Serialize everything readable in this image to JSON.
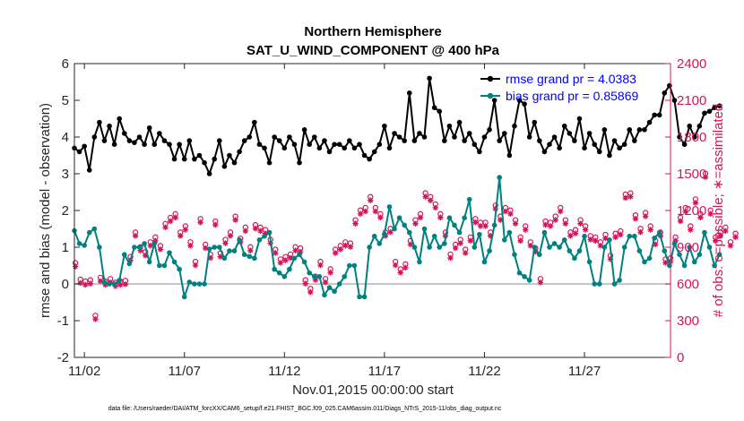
{
  "chart_data": {
    "type": "line",
    "title_line1": "Northern Hemisphere",
    "title_line2": "SAT_U_WIND_COMPONENT @ 400 hPa",
    "xlabel": "Nov.01,2015 00:00:00 start",
    "ylabel_left": "rmse and bias (model - observation)",
    "ylabel_right": "# of obs: o=possible; ∗=assimilated",
    "footer": "data file: /Users/raeder/DAI/ATM_forcXX/CAM6_setup/f.e21.FHIST_BGC.f09_025.CAM6assim.011/Diags_NTrS_2015-11/obs_diag_output.nc",
    "x_ticks": [
      {
        "day": 2,
        "label": "11/02"
      },
      {
        "day": 7,
        "label": "11/07"
      },
      {
        "day": 12,
        "label": "11/12"
      },
      {
        "day": 17,
        "label": "11/17"
      },
      {
        "day": 22,
        "label": "11/22"
      },
      {
        "day": 27,
        "label": "11/27"
      }
    ],
    "xlim": [
      1.5,
      31.3
    ],
    "ylim_left": [
      -2,
      6
    ],
    "yticks_left": [
      "-2",
      "-1",
      "0",
      "1",
      "2",
      "3",
      "4",
      "5",
      "6"
    ],
    "ylim_right": [
      0,
      2400
    ],
    "yticks_right": [
      "0",
      "300",
      "600",
      "900",
      "1200",
      "1500",
      "1800",
      "2100",
      "2400"
    ],
    "colors": {
      "rmse": "#000000",
      "bias": "#008080",
      "obs": "#d4145a",
      "zero": "#b3b3b3",
      "legend_text": "#0000ff"
    },
    "series": [
      {
        "name": "rmse grand pr = 4.0383",
        "x0": 1.5,
        "dx": 0.25,
        "values": [
          3.7,
          3.6,
          3.75,
          3.1,
          4.0,
          4.4,
          3.9,
          4.3,
          3.8,
          4.5,
          4.1,
          3.9,
          3.85,
          4.0,
          3.8,
          4.25,
          3.8,
          4.1,
          3.9,
          3.8,
          3.4,
          3.8,
          3.4,
          3.9,
          3.4,
          3.5,
          3.3,
          3.0,
          3.4,
          3.9,
          3.2,
          3.5,
          3.3,
          3.6,
          3.9,
          4.0,
          4.4,
          3.8,
          3.7,
          3.3,
          4.0,
          3.9,
          3.7,
          4.0,
          3.8,
          3.3,
          4.2,
          3.8,
          4.0,
          3.7,
          3.9,
          3.6,
          3.8,
          3.8,
          3.7,
          3.9,
          3.7,
          3.8,
          3.5,
          3.4,
          3.6,
          3.8,
          4.3,
          3.7,
          4.1,
          4.0,
          3.9,
          5.2,
          3.9,
          4.1,
          4.0,
          5.6,
          4.8,
          4.7,
          3.9,
          4.3,
          4.0,
          4.4,
          3.9,
          4.1,
          3.8,
          3.6,
          4.0,
          4.2,
          5.0,
          3.9,
          4.1,
          3.5,
          4.3,
          5.0,
          4.9,
          4.0,
          4.4,
          3.9,
          3.6,
          3.8,
          4.0,
          3.7,
          4.3,
          4.1,
          3.9,
          4.5,
          3.7,
          4.1,
          3.8,
          3.6,
          4.2,
          3.5,
          3.9,
          3.7,
          3.8,
          4.2,
          3.9,
          4.2,
          4.2,
          4.4,
          4.6,
          4.6,
          5.2,
          5.4,
          5.0,
          4.0,
          3.8,
          4.3,
          4.0,
          4.3,
          4.65,
          4.7,
          4.8,
          4.85
        ]
      },
      {
        "name": "bias grand pr = 0.85869",
        "x0": 1.5,
        "dx": 0.25,
        "values": [
          1.45,
          1.1,
          1.05,
          1.4,
          1.5,
          1.0,
          0.05,
          0.0,
          0.0,
          0.1,
          0.8,
          0.55,
          1.0,
          1.0,
          1.1,
          0.6,
          1.1,
          0.5,
          0.5,
          0.85,
          0.6,
          0.4,
          -0.35,
          0.05,
          0.0,
          0.0,
          0.0,
          0.95,
          1.0,
          1.0,
          0.7,
          0.9,
          0.9,
          1.2,
          0.8,
          0.75,
          0.7,
          1.2,
          1.3,
          1.4,
          0.4,
          0.3,
          0.2,
          0.4,
          0.7,
          0.8,
          0.6,
          0.3,
          0.2,
          0.2,
          -0.3,
          -0.1,
          -0.2,
          0.0,
          0.2,
          0.5,
          0.5,
          -0.35,
          -0.35,
          1.0,
          1.3,
          1.1,
          1.35,
          2.1,
          1.5,
          1.8,
          1.6,
          1.4,
          1.0,
          0.6,
          1.5,
          1.0,
          1.3,
          1.0,
          1.1,
          1.8,
          1.6,
          1.4,
          1.8,
          2.3,
          1.0,
          1.35,
          0.6,
          0.9,
          1.6,
          2.9,
          1.2,
          1.4,
          0.8,
          0.3,
          0.2,
          0.1,
          1.0,
          0.8,
          1.4,
          1.0,
          1.1,
          1.0,
          1.2,
          0.9,
          0.7,
          0.9,
          1.3,
          0.6,
          0.0,
          0.0,
          1.0,
          1.2,
          0.0,
          0.1,
          1.0,
          1.3,
          1.3,
          0.9,
          0.6,
          0.7,
          1.25,
          1.4,
          0.9,
          0.5,
          1.1,
          0.8,
          0.5,
          1.0,
          0.6,
          0.8,
          1.4,
          1.0,
          0.5,
          0.8
        ]
      },
      {
        "name": "# of obs",
        "x0": 1.55,
        "dx": 0.25,
        "values": [
          750,
          615,
          600,
          610,
          320,
          630,
          600,
          620,
          590,
          600,
          605,
          800,
          1000,
          880,
          840,
          920,
          960,
          890,
          1070,
          1120,
          1150,
          1000,
          1050,
          920,
          760,
          1110,
          900,
          820,
          1090,
          830,
          940,
          1000,
          1130,
          950,
          1040,
          880,
          1060,
          1040,
          1020,
          940,
          860,
          780,
          800,
          820,
          880,
          870,
          610,
          540,
          640,
          760,
          620,
          700,
          860,
          890,
          920,
          910,
          1100,
          1180,
          1200,
          1290,
          1200,
          1150,
          1000,
          1030,
          760,
          700,
          740,
          930,
          1100,
          1150,
          1320,
          1290,
          1230,
          1150,
          1000,
          820,
          900,
          940,
          860,
          960,
          1110,
          1080,
          1080,
          1000,
          1220,
          1130,
          1200,
          1180,
          1100,
          960,
          1050,
          920,
          870,
          620,
          1090,
          1080,
          1130,
          1200,
          1100,
          1000,
          1020,
          1100,
          1050,
          970,
          960,
          920,
          980,
          810,
          990,
          1010,
          1310,
          1320,
          1140,
          1030,
          1160,
          1050,
          930,
          1000,
          780,
          790,
          960,
          1120,
          1200,
          1050,
          1270,
          1150,
          1480,
          1180,
          960,
          1000,
          1040,
          920,
          990
        ]
      }
    ],
    "legend": [
      "rmse grand pr = 4.0383",
      "bias grand pr = 0.85869"
    ]
  }
}
